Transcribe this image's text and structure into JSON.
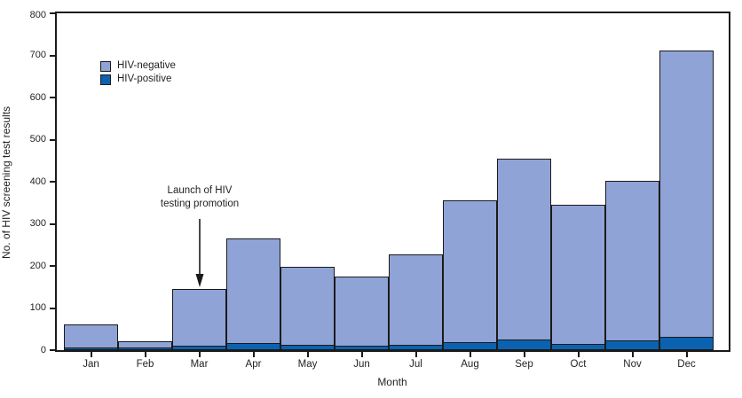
{
  "chart_data": {
    "type": "bar",
    "stacked": true,
    "title": "",
    "xlabel": "Month",
    "ylabel": "No. of HIV screening test results",
    "categories": [
      "Jan",
      "Feb",
      "Mar",
      "Apr",
      "May",
      "Jun",
      "Jul",
      "Aug",
      "Sep",
      "Oct",
      "Nov",
      "Dec"
    ],
    "series": [
      {
        "name": "HIV-negative",
        "color": "#8fa3d6",
        "values": [
          58,
          18,
          137,
          251,
          188,
          167,
          218,
          339,
          431,
          333,
          381,
          682
        ]
      },
      {
        "name": "HIV-positive",
        "color": "#0a62b1",
        "values": [
          2,
          2,
          8,
          14,
          10,
          8,
          10,
          16,
          24,
          12,
          22,
          30
        ]
      }
    ],
    "totals": [
      60,
      20,
      145,
      265,
      198,
      175,
      228,
      355,
      455,
      345,
      403,
      712
    ],
    "ylim": [
      0,
      800
    ],
    "y_ticks": [
      0,
      100,
      200,
      300,
      400,
      500,
      600,
      700,
      800
    ],
    "grid": false,
    "legend_position": "upper-left-inside",
    "bar_edge_color": "#1a1a1a",
    "text_color": "#231f20",
    "annotation": {
      "line1": "Launch of HIV",
      "line2": "testing promotion",
      "target_month": "Mar",
      "arrow_direction": "down"
    }
  }
}
